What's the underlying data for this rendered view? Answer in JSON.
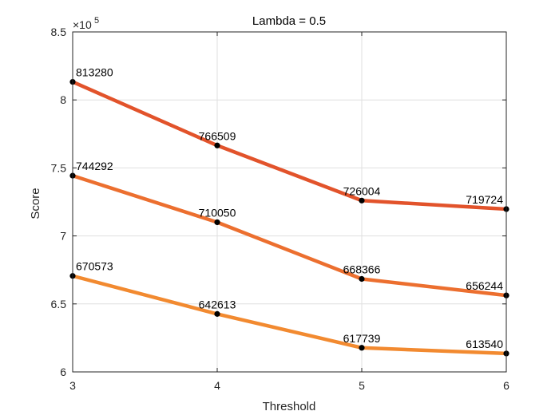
{
  "chart_data": {
    "type": "line",
    "title": "Lambda = 0.5",
    "xlabel": "Threshold",
    "ylabel": "Score",
    "x": [
      3,
      4,
      5,
      6
    ],
    "xlim": [
      3,
      6
    ],
    "xticks": [
      3,
      4,
      5,
      6
    ],
    "xtick_labels": [
      "3",
      "4",
      "5",
      "6"
    ],
    "ylim": [
      600000,
      850000
    ],
    "yticks": [
      600000,
      650000,
      700000,
      750000,
      800000,
      850000
    ],
    "ytick_labels": [
      "6",
      "6.5",
      "7",
      "7.5",
      "8",
      "8.5"
    ],
    "y_exponent_label": "×10",
    "y_exponent_power": "5",
    "grid": true,
    "series": [
      {
        "name": "series-1",
        "color": "#e2532b",
        "values": [
          813280,
          766509,
          726004,
          719724
        ],
        "labels": [
          "813280",
          "766509",
          "726004",
          "719724"
        ]
      },
      {
        "name": "series-2",
        "color": "#ec6f2f",
        "values": [
          744292,
          710050,
          668366,
          656244
        ],
        "labels": [
          "744292",
          "710050",
          "668366",
          "656244"
        ]
      },
      {
        "name": "series-3",
        "color": "#f28a30",
        "values": [
          670573,
          642613,
          617739,
          613540
        ],
        "labels": [
          "670573",
          "642613",
          "617739",
          "613540"
        ]
      }
    ]
  }
}
